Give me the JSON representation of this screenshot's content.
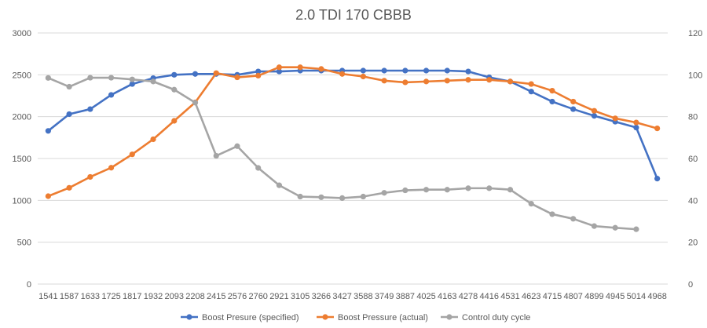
{
  "chart_data": {
    "type": "line",
    "title": "2.0 TDI 170 CBBB",
    "categories": [
      "1541",
      "1587",
      "1633",
      "1725",
      "1817",
      "1932",
      "2093",
      "2208",
      "2415",
      "2576",
      "2760",
      "2921",
      "3105",
      "3266",
      "3427",
      "3588",
      "3749",
      "3887",
      "4025",
      "4163",
      "4278",
      "4416",
      "4531",
      "4623",
      "4715",
      "4807",
      "4899",
      "4945",
      "5014",
      "4968"
    ],
    "y_left": {
      "min": 0,
      "max": 3000,
      "step": 500,
      "ticks": [
        "0",
        "500",
        "1000",
        "1500",
        "2000",
        "2500",
        "3000"
      ]
    },
    "y_right": {
      "min": 0,
      "max": 120,
      "step": 20,
      "ticks": [
        "0",
        "20",
        "40",
        "60",
        "80",
        "100",
        "120"
      ]
    },
    "series": [
      {
        "name": "Boost Presure (specified)",
        "color": "#4472C4",
        "axis": "left",
        "values": [
          1830,
          2030,
          2090,
          2260,
          2390,
          2460,
          2500,
          2510,
          2510,
          2500,
          2540,
          2540,
          2550,
          2550,
          2550,
          2550,
          2550,
          2550,
          2550,
          2550,
          2540,
          2470,
          2420,
          2300,
          2180,
          2090,
          2010,
          1940,
          1870,
          1260
        ]
      },
      {
        "name": "Boost Pressure (actual)",
        "color": "#ED7D31",
        "axis": "left",
        "values": [
          1050,
          1150,
          1280,
          1390,
          1550,
          1730,
          1950,
          2170,
          2520,
          2470,
          2490,
          2590,
          2590,
          2570,
          2510,
          2480,
          2430,
          2410,
          2420,
          2430,
          2440,
          2440,
          2420,
          2390,
          2310,
          2180,
          2070,
          1980,
          1930,
          1860
        ]
      },
      {
        "name": "Control duty cycle",
        "color": "#A5A5A5",
        "axis": "right",
        "values": [
          98.5,
          94.3,
          98.6,
          98.6,
          97.8,
          96.8,
          92.9,
          86.7,
          61.3,
          65.9,
          55.5,
          47.2,
          41.8,
          41.5,
          41.1,
          41.8,
          43.6,
          44.8,
          45.1,
          45.1,
          45.8,
          45.8,
          45.1,
          38.4,
          33.4,
          31.2,
          27.7,
          26.9,
          26.2,
          null
        ]
      }
    ],
    "legend": "bottom-center"
  }
}
